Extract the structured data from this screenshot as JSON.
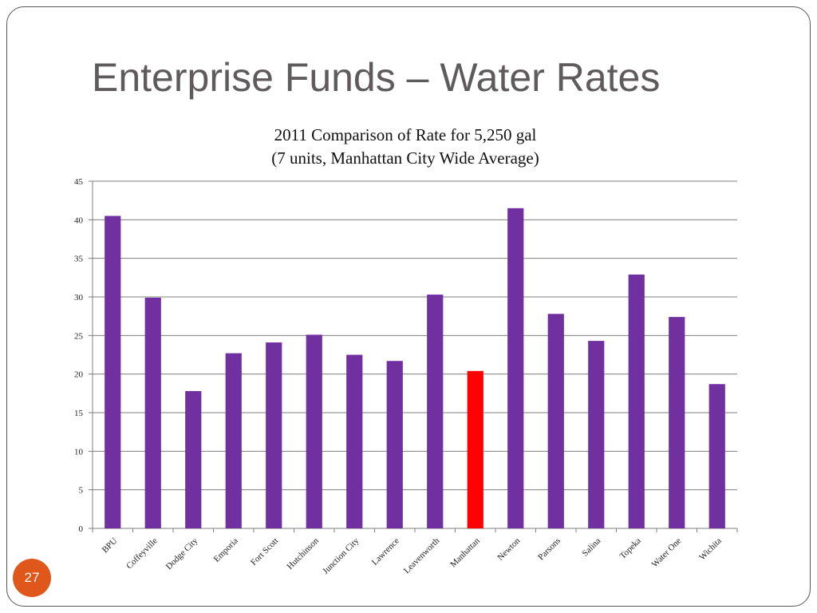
{
  "slide": {
    "title": "Enterprise Funds – Water Rates",
    "page_number": "27",
    "accent_color": "#E0571B"
  },
  "chart_data": {
    "type": "bar",
    "title": "2011 Comparison of Rate for 5,250 gal",
    "subtitle": "(7 units, Manhattan City Wide Average)",
    "xlabel": "",
    "ylabel": "",
    "ylim": [
      0,
      45
    ],
    "yticks": [
      0,
      5,
      10,
      15,
      20,
      25,
      30,
      35,
      40,
      45
    ],
    "grid": true,
    "legend": "none",
    "categories": [
      "BPU",
      "Coffeyville",
      "Dodge City",
      "Emporia",
      "Fort Scott",
      "Hutchinson",
      "Junction City",
      "Lawrence",
      "Leavenworth",
      "Manhattan",
      "Newton",
      "Parsons",
      "Salina",
      "Topeka",
      "Water One",
      "Wichita"
    ],
    "values": [
      40.5,
      29.9,
      17.8,
      22.7,
      24.1,
      25.1,
      22.5,
      21.7,
      30.3,
      20.4,
      41.5,
      27.8,
      24.3,
      32.9,
      27.4,
      18.7
    ],
    "bar_color": "#7030A0",
    "highlight": {
      "category": "Manhattan",
      "color": "#FF0000"
    }
  }
}
